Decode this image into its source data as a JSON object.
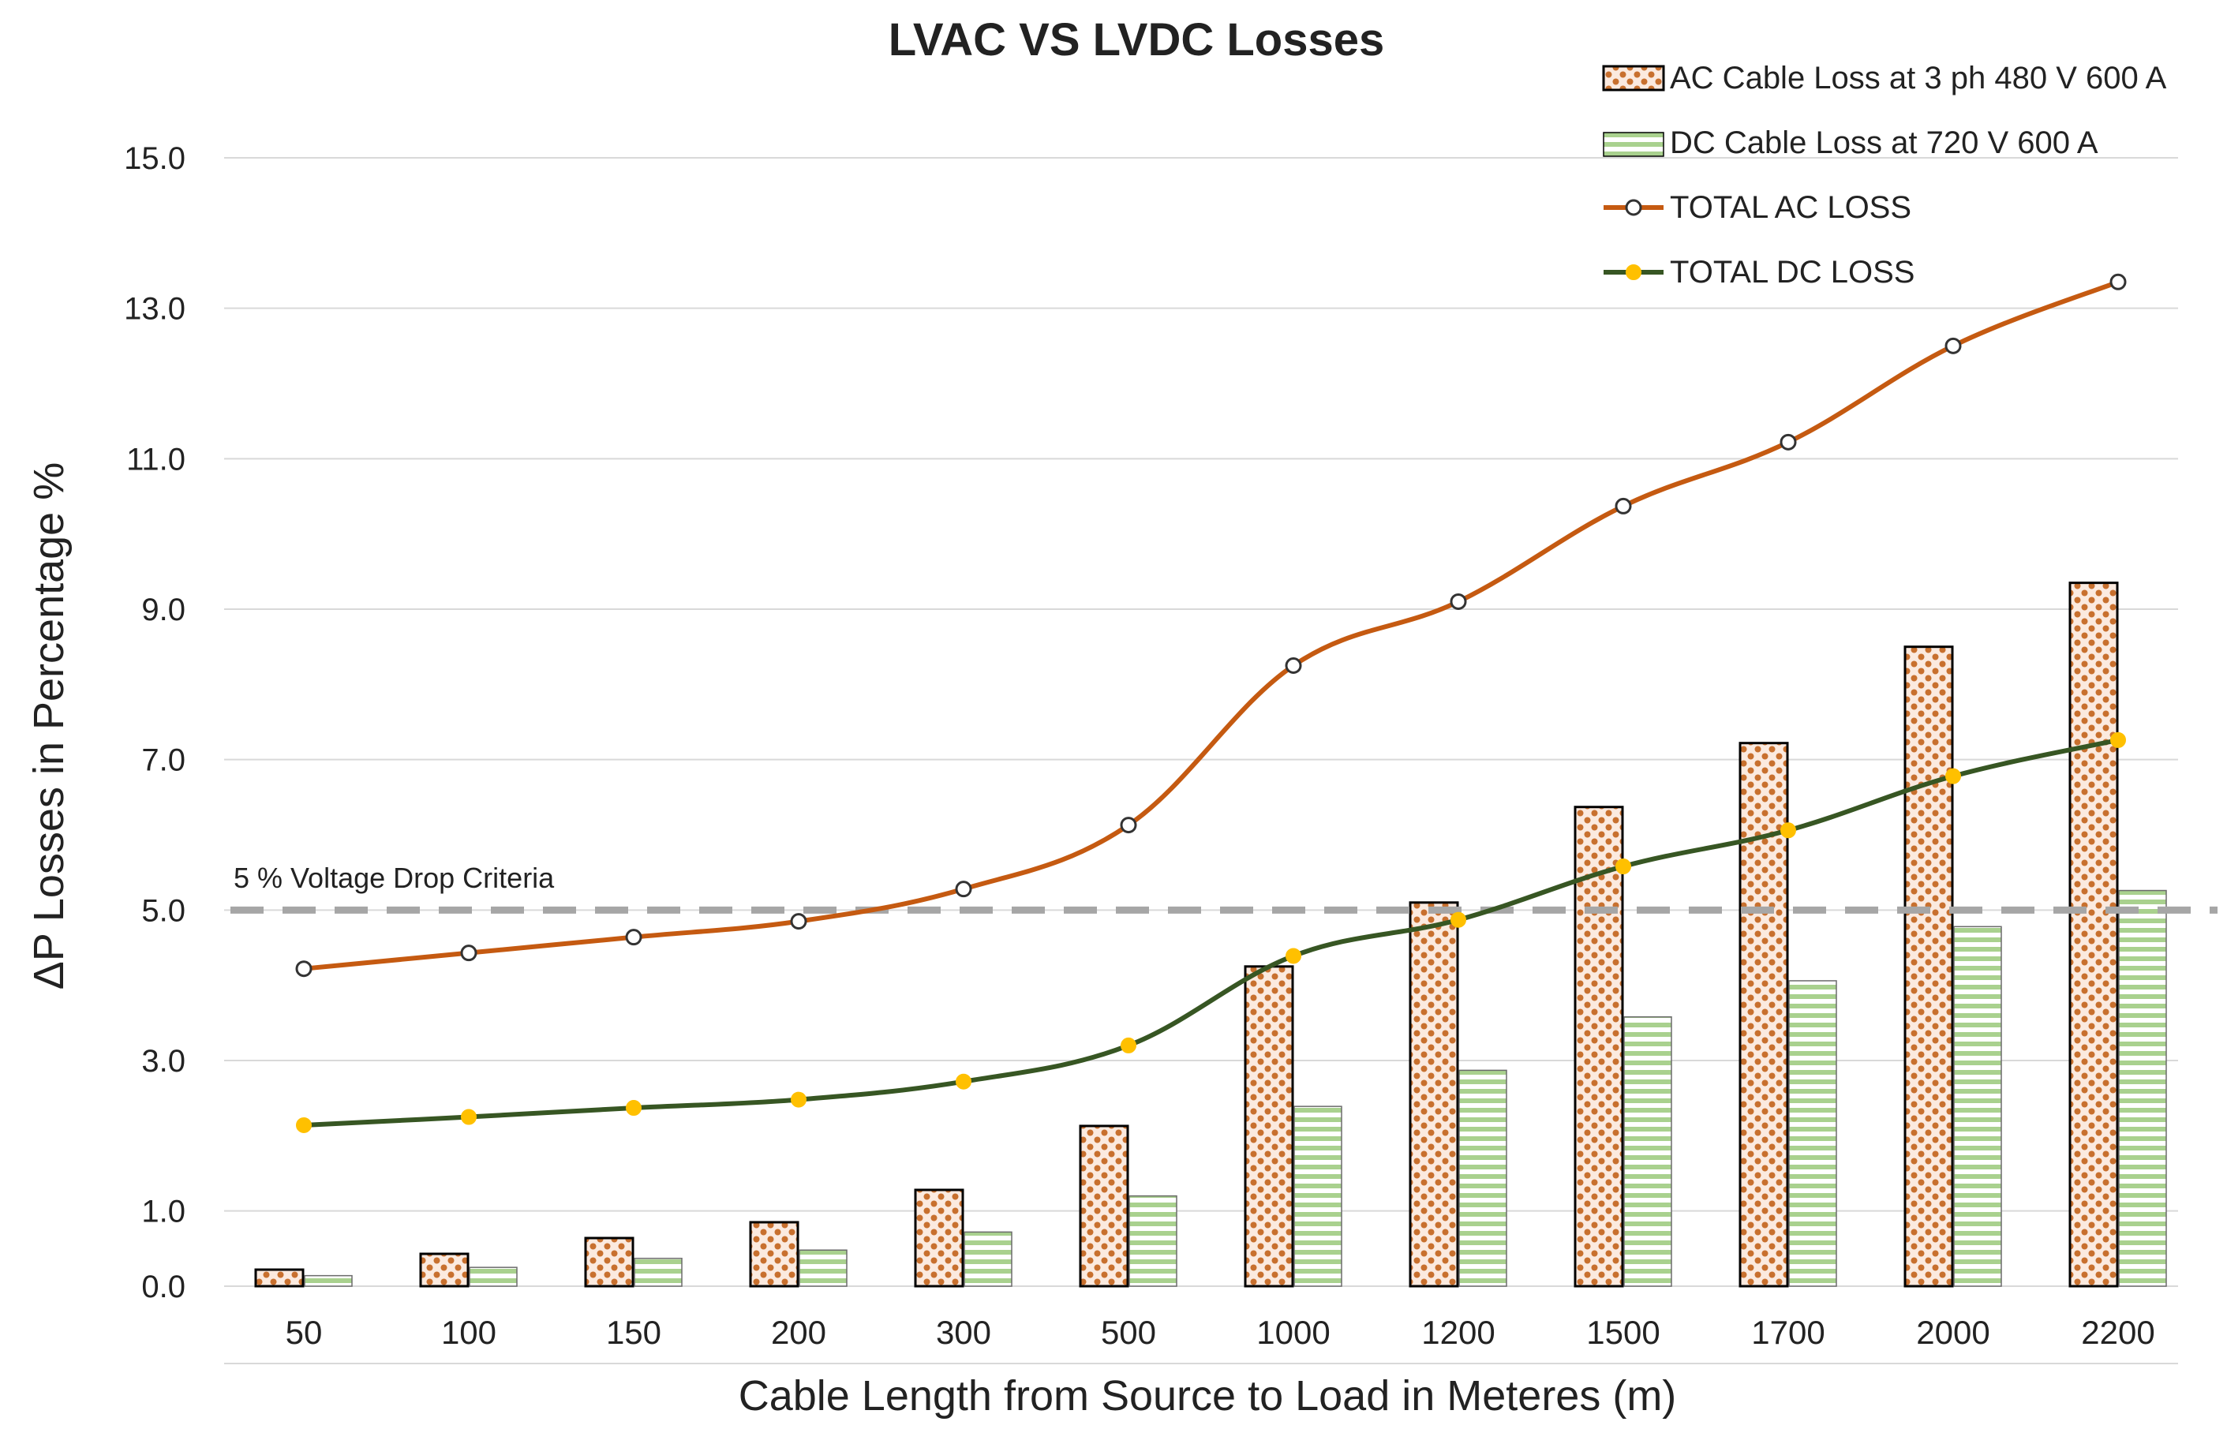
{
  "chart_data": {
    "type": "bar",
    "title": "LVAC VS LVDC Losses",
    "xlabel": "Cable Length from Source to Load in Meteres (m)",
    "ylabel": "ΔP Losses in Percentage %",
    "ylim": [
      0,
      15.5
    ],
    "yticks": [
      0,
      1,
      3,
      5,
      7,
      9,
      11,
      13,
      15
    ],
    "ytick_labels": [
      "0.0",
      "1.0",
      "3.0",
      "5.0",
      "7.0",
      "9.0",
      "11.0",
      "13.0",
      "15.0"
    ],
    "grid": true,
    "legend_position": "top-right",
    "categories": [
      "50",
      "100",
      "150",
      "200",
      "300",
      "500",
      "1000",
      "1200",
      "1500",
      "1700",
      "2000",
      "2200"
    ],
    "series": [
      {
        "name": "AC Cable Loss at 3 ph 480 V 600 A",
        "kind": "bar",
        "pattern": "dots",
        "color": "#c8702e",
        "values": [
          0.22,
          0.43,
          0.64,
          0.85,
          1.28,
          2.13,
          4.25,
          5.1,
          6.37,
          7.22,
          8.5,
          9.35
        ]
      },
      {
        "name": "DC Cable Loss at 720 V 600 A",
        "kind": "bar",
        "pattern": "horizontal-stripes",
        "color": "#a9d18e",
        "values": [
          0.14,
          0.25,
          0.37,
          0.48,
          0.72,
          1.2,
          2.39,
          2.87,
          3.58,
          4.06,
          4.78,
          5.26
        ]
      },
      {
        "name": "TOTAL AC LOSS",
        "kind": "line",
        "color": "#c55a11",
        "marker_fill": "#ffffff",
        "values": [
          4.22,
          4.43,
          4.64,
          4.85,
          5.28,
          6.13,
          8.25,
          9.1,
          10.37,
          11.22,
          12.5,
          13.35
        ]
      },
      {
        "name": "TOTAL DC LOSS",
        "kind": "line",
        "color": "#375623",
        "marker_fill": "#ffc000",
        "values": [
          2.14,
          2.25,
          2.37,
          2.48,
          2.72,
          3.2,
          4.39,
          4.87,
          5.58,
          6.06,
          6.78,
          7.26
        ]
      }
    ],
    "reference_line": {
      "value": 5.0,
      "label": "5 % Voltage Drop Criteria",
      "color": "#a6a6a6",
      "style": "dashed"
    }
  }
}
